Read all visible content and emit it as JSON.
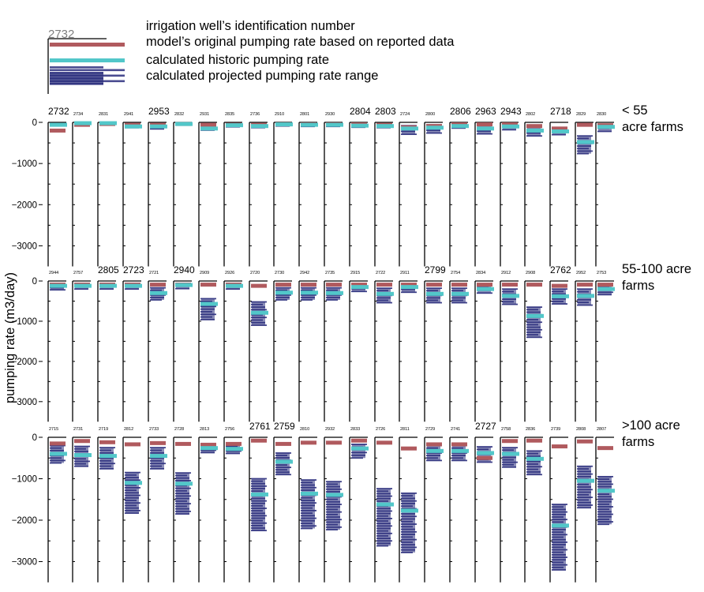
{
  "colors": {
    "axis": "#000000",
    "tick_text": "#000000",
    "original_rate": "#b05a5e",
    "historic_rate": "#52c7c9",
    "projected_range": "#2a2d7c",
    "legend_id_text": "#7f7f7f"
  },
  "legend": {
    "sample_id": "2732",
    "id_label": "irrigation well’s identification number",
    "original_label": "model’s original pumping rate based on reported data",
    "historic_label": "calculated historic pumping rate",
    "projected_label": "calculated projected pumping rate range"
  },
  "chart_data": {
    "type": "bar",
    "ylabel": "pumping rate (m3/day)",
    "ylim": [
      -3500,
      0
    ],
    "yticks": [
      0,
      -1000,
      -2000,
      -3000
    ],
    "yticks_labels": [
      "0",
      "−1000",
      "−2000",
      "−3000"
    ],
    "series_names": [
      "model’s original pumping rate based on reported data",
      "calculated historic pumping rate",
      "calculated projected pumping rate range"
    ],
    "groups": [
      {
        "label": "< 55 acre farms",
        "wells": [
          {
            "id": "2732",
            "big": true,
            "original": -200,
            "historic": -60,
            "range": null
          },
          {
            "id": "2734",
            "big": false,
            "original": -60,
            "historic": -20,
            "range": null
          },
          {
            "id": "2831",
            "big": false,
            "original": -40,
            "historic": -20,
            "range": null
          },
          {
            "id": "2941",
            "big": false,
            "original": -60,
            "historic": -100,
            "range": [
              -130,
              -50
            ]
          },
          {
            "id": "2953",
            "big": true,
            "original": -60,
            "historic": -100,
            "range": [
              -160,
              -50
            ]
          },
          {
            "id": "2832",
            "big": false,
            "original": -40,
            "historic": -40,
            "range": null
          },
          {
            "id": "2931",
            "big": false,
            "original": -60,
            "historic": -150,
            "range": [
              -190,
              -60
            ]
          },
          {
            "id": "2835",
            "big": false,
            "original": -60,
            "historic": -70,
            "range": [
              -110,
              -40
            ]
          },
          {
            "id": "2736",
            "big": false,
            "original": -60,
            "historic": -90,
            "range": [
              -130,
              -50
            ]
          },
          {
            "id": "2910",
            "big": false,
            "original": -50,
            "historic": -50,
            "range": [
              -90,
              -30
            ]
          },
          {
            "id": "2801",
            "big": false,
            "original": -50,
            "historic": -60,
            "range": [
              -100,
              -30
            ]
          },
          {
            "id": "2930",
            "big": false,
            "original": -50,
            "historic": -60,
            "range": [
              -100,
              -30
            ]
          },
          {
            "id": "2804",
            "big": true,
            "original": -50,
            "historic": -80,
            "range": [
              -120,
              -40
            ]
          },
          {
            "id": "2803",
            "big": true,
            "original": -60,
            "historic": -90,
            "range": [
              -130,
              -50
            ]
          },
          {
            "id": "2724",
            "big": false,
            "original": -120,
            "historic": -150,
            "range": [
              -290,
              -80
            ]
          },
          {
            "id": "2800",
            "big": false,
            "original": -90,
            "historic": -130,
            "range": [
              -260,
              -60
            ]
          },
          {
            "id": "2806",
            "big": true,
            "original": -50,
            "historic": -90,
            "range": [
              -140,
              -40
            ]
          },
          {
            "id": "2963",
            "big": true,
            "original": -50,
            "historic": -150,
            "range": [
              -280,
              -80
            ]
          },
          {
            "id": "2943",
            "big": true,
            "original": -50,
            "historic": -100,
            "range": [
              -180,
              -60
            ]
          },
          {
            "id": "2802",
            "big": false,
            "original": -90,
            "historic": -200,
            "range": [
              -330,
              -120
            ]
          },
          {
            "id": "2718",
            "big": true,
            "original": -150,
            "historic": -220,
            "range": [
              -300,
              -150
            ]
          },
          {
            "id": "2829",
            "big": false,
            "original": -60,
            "historic": -480,
            "range": [
              -760,
              -330
            ]
          },
          {
            "id": "2830",
            "big": false,
            "original": -70,
            "historic": -110,
            "range": [
              -220,
              -70
            ]
          }
        ]
      },
      {
        "label": "55-100 acre farms",
        "wells": [
          {
            "id": "2944",
            "big": false,
            "original": -90,
            "historic": -120,
            "range": [
              -220,
              -60
            ]
          },
          {
            "id": "2757",
            "big": false,
            "original": -90,
            "historic": -120,
            "range": [
              -200,
              -60
            ]
          },
          {
            "id": "2805",
            "big": true,
            "original": -90,
            "historic": -120,
            "range": [
              -200,
              -60
            ]
          },
          {
            "id": "2723",
            "big": true,
            "original": -90,
            "historic": -120,
            "range": [
              -200,
              -60
            ]
          },
          {
            "id": "2721",
            "big": false,
            "original": -90,
            "historic": -300,
            "range": [
              -470,
              -170
            ]
          },
          {
            "id": "2940",
            "big": true,
            "original": -90,
            "historic": -100,
            "range": [
              -190,
              -60
            ]
          },
          {
            "id": "2909",
            "big": false,
            "original": -90,
            "historic": -570,
            "range": [
              -960,
              -440
            ]
          },
          {
            "id": "2926",
            "big": false,
            "original": -90,
            "historic": -120,
            "range": [
              -200,
              -60
            ]
          },
          {
            "id": "2720",
            "big": false,
            "original": -120,
            "historic": -790,
            "range": [
              -1100,
              -520
            ]
          },
          {
            "id": "2730",
            "big": false,
            "original": -90,
            "historic": -290,
            "range": [
              -470,
              -170
            ]
          },
          {
            "id": "2942",
            "big": false,
            "original": -90,
            "historic": -290,
            "range": [
              -470,
              -170
            ]
          },
          {
            "id": "2735",
            "big": false,
            "original": -90,
            "historic": -300,
            "range": [
              -470,
              -170
            ]
          },
          {
            "id": "2915",
            "big": false,
            "original": -90,
            "historic": -150,
            "range": [
              -260,
              -70
            ]
          },
          {
            "id": "2722",
            "big": false,
            "original": -90,
            "historic": -320,
            "range": [
              -540,
              -180
            ]
          },
          {
            "id": "2911",
            "big": false,
            "original": -90,
            "historic": -150,
            "range": [
              -280,
              -70
            ]
          },
          {
            "id": "2799",
            "big": true,
            "original": -90,
            "historic": -320,
            "range": [
              -540,
              -180
            ]
          },
          {
            "id": "2754",
            "big": false,
            "original": -90,
            "historic": -320,
            "range": [
              -540,
              -180
            ]
          },
          {
            "id": "2834",
            "big": false,
            "original": -90,
            "historic": -200,
            "range": [
              -300,
              -90
            ]
          },
          {
            "id": "2912",
            "big": false,
            "original": -90,
            "historic": -370,
            "range": [
              -580,
              -200
            ]
          },
          {
            "id": "2908",
            "big": false,
            "original": -90,
            "historic": -870,
            "range": [
              -1400,
              -650
            ]
          },
          {
            "id": "2762",
            "big": true,
            "original": -120,
            "historic": -380,
            "range": [
              -570,
              -200
            ]
          },
          {
            "id": "2952",
            "big": false,
            "original": -90,
            "historic": -370,
            "range": [
              -600,
              -200
            ]
          },
          {
            "id": "2753",
            "big": false,
            "original": -90,
            "historic": -200,
            "range": [
              -340,
              -100
            ]
          }
        ]
      },
      {
        "label": ">100 acre farms",
        "wells": [
          {
            "id": "2715",
            "big": false,
            "original": -150,
            "historic": -400,
            "range": [
              -620,
              -200
            ]
          },
          {
            "id": "2731",
            "big": false,
            "original": -90,
            "historic": -430,
            "range": [
              -700,
              -220
            ]
          },
          {
            "id": "2719",
            "big": false,
            "original": -120,
            "historic": -450,
            "range": [
              -760,
              -250
            ]
          },
          {
            "id": "2812",
            "big": false,
            "original": -170,
            "historic": -1100,
            "range": [
              -1830,
              -850
            ]
          },
          {
            "id": "2733",
            "big": false,
            "original": -140,
            "historic": -450,
            "range": [
              -760,
              -250
            ]
          },
          {
            "id": "2728",
            "big": false,
            "original": -160,
            "historic": -1120,
            "range": [
              -1850,
              -860
            ]
          },
          {
            "id": "2813",
            "big": false,
            "original": -180,
            "historic": -260,
            "range": [
              -370,
              -150
            ]
          },
          {
            "id": "2756",
            "big": false,
            "original": -160,
            "historic": -280,
            "range": [
              -390,
              -160
            ]
          },
          {
            "id": "2761",
            "big": true,
            "original": -80,
            "historic": -1380,
            "range": [
              -2250,
              -1000
            ]
          },
          {
            "id": "2759",
            "big": true,
            "original": -160,
            "historic": -590,
            "range": [
              -900,
              -380
            ]
          },
          {
            "id": "2810",
            "big": false,
            "original": -130,
            "historic": -1360,
            "range": [
              -2200,
              -1030
            ]
          },
          {
            "id": "2932",
            "big": false,
            "original": -130,
            "historic": -1390,
            "range": [
              -2230,
              -1070
            ]
          },
          {
            "id": "2833",
            "big": false,
            "original": -80,
            "historic": -270,
            "range": [
              -500,
              -170
            ]
          },
          {
            "id": "2726",
            "big": false,
            "original": -130,
            "historic": -1620,
            "range": [
              -2620,
              -1240
            ]
          },
          {
            "id": "2811",
            "big": false,
            "original": -270,
            "historic": -1770,
            "range": [
              -2780,
              -1350
            ]
          },
          {
            "id": "2729",
            "big": false,
            "original": -170,
            "historic": -330,
            "range": [
              -560,
              -200
            ]
          },
          {
            "id": "2741",
            "big": false,
            "original": -170,
            "historic": -330,
            "range": [
              -560,
              -200
            ]
          },
          {
            "id": "2727",
            "big": true,
            "original": -500,
            "historic": -380,
            "range": [
              -600,
              -230
            ]
          },
          {
            "id": "2758",
            "big": false,
            "original": -90,
            "historic": -400,
            "range": [
              -720,
              -250
            ]
          },
          {
            "id": "2836",
            "big": false,
            "original": -80,
            "historic": -520,
            "range": [
              -900,
              -330
            ]
          },
          {
            "id": "2739",
            "big": false,
            "original": -220,
            "historic": -2130,
            "range": [
              -3200,
              -1620
            ]
          },
          {
            "id": "2808",
            "big": false,
            "original": -100,
            "historic": -1050,
            "range": [
              -1700,
              -700
            ]
          },
          {
            "id": "2807",
            "big": false,
            "original": -260,
            "historic": -1290,
            "range": [
              -2100,
              -950
            ]
          }
        ]
      }
    ]
  }
}
